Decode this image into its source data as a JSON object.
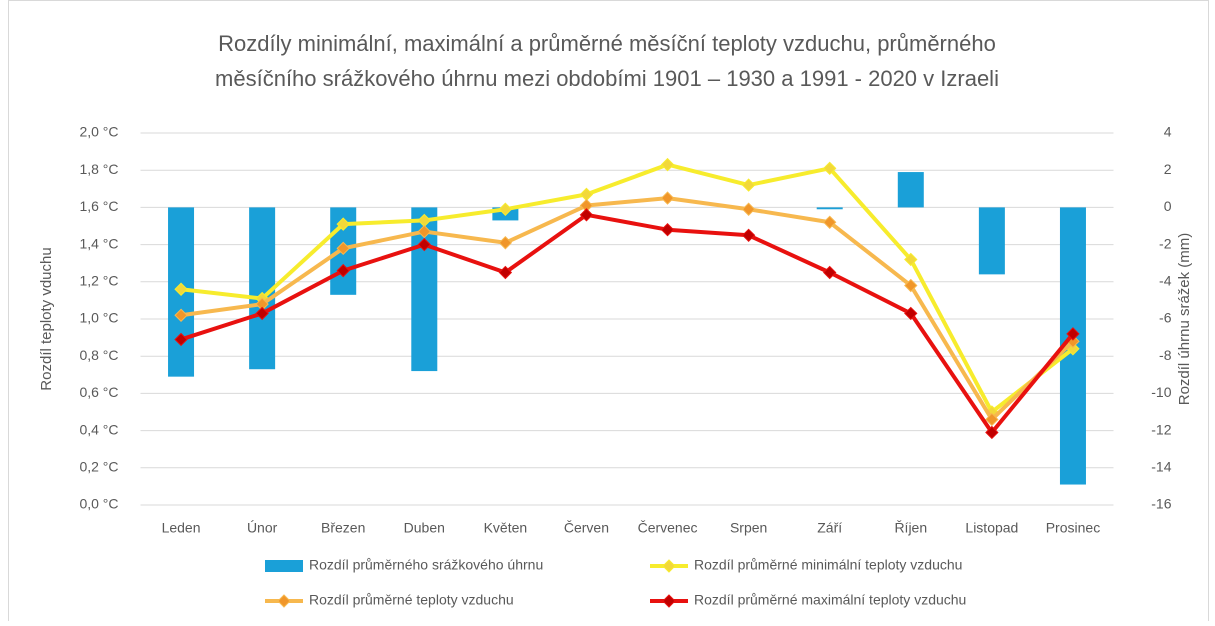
{
  "chart_data": {
    "type": "combo",
    "title": [
      "Rozdíly minimální, maximální a průměrné měsíční teploty vzduchu, průměrného",
      "měsíčního srážkového úhrnu mezi obdobími 1901 – 1930  a 1991 - 2020 v Izraeli"
    ],
    "y_label": "Rozdíl teploty vduchu",
    "y2_label": "Rozdíl úhrnu srážek (mm)",
    "categories": [
      "Leden",
      "Únor",
      "Březen",
      "Duben",
      "Květen",
      "Červen",
      "Červenec",
      "Srpen",
      "Září",
      "Říjen",
      "Listopad",
      "Prosinec"
    ],
    "ylim": [
      0,
      2
    ],
    "yticks": [
      {
        "value": 0,
        "label": "0,0 °C"
      },
      {
        "value": 0.2,
        "label": "0,2 °C"
      },
      {
        "value": 0.4,
        "label": "0,4 °C"
      },
      {
        "value": 0.6,
        "label": "0,6 °C"
      },
      {
        "value": 0.8,
        "label": "0,8 °C"
      },
      {
        "value": 1.0,
        "label": "1,0 °C"
      },
      {
        "value": 1.2,
        "label": "1,2 °C"
      },
      {
        "value": 1.4,
        "label": "1,4 °C"
      },
      {
        "value": 1.6,
        "label": "1,6 °C"
      },
      {
        "value": 1.8,
        "label": "1,8 °C"
      },
      {
        "value": 2.0,
        "label": "2,0 °C"
      }
    ],
    "y2lim": [
      -16,
      4
    ],
    "y2ticks": [
      -16,
      -14,
      -12,
      -10,
      -8,
      -6,
      -4,
      -2,
      0,
      2,
      4
    ],
    "grid": true,
    "legend": "bottom",
    "series": [
      {
        "name": "Rozdíl průměrného srážkového úhrnu",
        "type": "bar",
        "axis": "y2",
        "color": "#1aa0d8",
        "values": [
          -9.1,
          -8.7,
          -4.7,
          -8.8,
          -0.7,
          0,
          0,
          0,
          -0.1,
          1.9,
          -3.6,
          -14.9
        ]
      },
      {
        "name": "Rozdíl průměrné minimální teploty vzduchu",
        "type": "line",
        "color": "#f7ec2d",
        "marker_color": "#f2d83a",
        "values": [
          1.16,
          1.11,
          1.51,
          1.53,
          1.59,
          1.67,
          1.83,
          1.72,
          1.81,
          1.32,
          0.5,
          0.84
        ]
      },
      {
        "name": "Rozdíl průměrné teploty vzduchu",
        "type": "line",
        "color": "#f7b84e",
        "marker_color": "#f0962a",
        "values": [
          1.02,
          1.08,
          1.38,
          1.47,
          1.41,
          1.61,
          1.65,
          1.59,
          1.52,
          1.18,
          0.46,
          0.88
        ]
      },
      {
        "name": "Rozdíl průměrné maximální teploty vzduchu",
        "type": "line",
        "color": "#e8110f",
        "marker_color": "#c00000",
        "values": [
          0.89,
          1.03,
          1.26,
          1.4,
          1.25,
          1.56,
          1.48,
          1.45,
          1.25,
          1.03,
          0.39,
          0.92
        ]
      }
    ]
  }
}
